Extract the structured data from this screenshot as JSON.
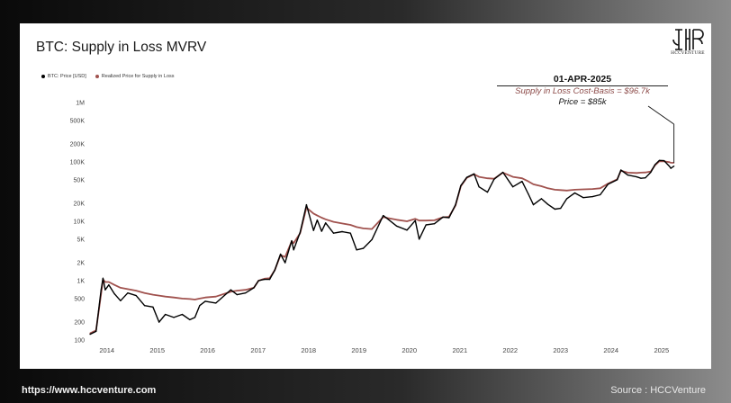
{
  "chart_data": {
    "type": "line",
    "title": "BTC: Supply in Loss MVRV",
    "xlabel": "",
    "ylabel": "",
    "y_scale": "log",
    "ylim": [
      100,
      1000000
    ],
    "xlim": [
      "2013-09-01",
      "2025-04-10"
    ],
    "y_ticks": [
      {
        "v": 100,
        "label": "100"
      },
      {
        "v": 200,
        "label": "200"
      },
      {
        "v": 500,
        "label": "500"
      },
      {
        "v": 1000,
        "label": "1K"
      },
      {
        "v": 2000,
        "label": "2K"
      },
      {
        "v": 5000,
        "label": "5K"
      },
      {
        "v": 10000,
        "label": "10K"
      },
      {
        "v": 20000,
        "label": "20K"
      },
      {
        "v": 50000,
        "label": "50K"
      },
      {
        "v": 100000,
        "label": "100K"
      },
      {
        "v": 200000,
        "label": "200K"
      },
      {
        "v": 500000,
        "label": "500K"
      },
      {
        "v": 1000000,
        "label": "1M"
      }
    ],
    "x_ticks": [
      {
        "v": "2014-01-01",
        "label": "2014"
      },
      {
        "v": "2015-01-01",
        "label": "2015"
      },
      {
        "v": "2016-01-01",
        "label": "2016"
      },
      {
        "v": "2017-01-01",
        "label": "2017"
      },
      {
        "v": "2018-01-01",
        "label": "2018"
      },
      {
        "v": "2019-01-01",
        "label": "2019"
      },
      {
        "v": "2020-01-01",
        "label": "2020"
      },
      {
        "v": "2021-01-01",
        "label": "2021"
      },
      {
        "v": "2022-01-01",
        "label": "2022"
      },
      {
        "v": "2023-01-01",
        "label": "2023"
      },
      {
        "v": "2024-01-01",
        "label": "2024"
      },
      {
        "v": "2025-01-01",
        "label": "2025"
      }
    ],
    "grid": false,
    "legend_position": "top-left",
    "series": [
      {
        "name": "BTC: Price [USD]",
        "color": "#000000",
        "x": [
          "2013-09-01",
          "2013-10-15",
          "2013-11-20",
          "2013-12-04",
          "2013-12-20",
          "2014-01-15",
          "2014-02-25",
          "2014-04-10",
          "2014-06-01",
          "2014-08-01",
          "2014-10-01",
          "2014-12-01",
          "2015-01-14",
          "2015-03-01",
          "2015-05-01",
          "2015-07-01",
          "2015-08-25",
          "2015-10-01",
          "2015-11-04",
          "2015-12-15",
          "2016-03-01",
          "2016-06-17",
          "2016-08-01",
          "2016-10-01",
          "2016-12-01",
          "2017-01-04",
          "2017-02-15",
          "2017-03-25",
          "2017-05-01",
          "2017-06-12",
          "2017-07-15",
          "2017-09-01",
          "2017-09-15",
          "2017-11-01",
          "2017-12-17",
          "2018-02-06",
          "2018-03-05",
          "2018-04-06",
          "2018-05-05",
          "2018-07-01",
          "2018-09-01",
          "2018-11-01",
          "2018-12-15",
          "2019-02-01",
          "2019-04-05",
          "2019-06-26",
          "2019-08-01",
          "2019-10-01",
          "2019-12-15",
          "2020-02-13",
          "2020-03-12",
          "2020-05-01",
          "2020-07-01",
          "2020-09-01",
          "2020-10-15",
          "2020-12-01",
          "2021-01-08",
          "2021-02-20",
          "2021-04-14",
          "2021-05-20",
          "2021-07-20",
          "2021-09-06",
          "2021-11-09",
          "2022-01-20",
          "2022-03-28",
          "2022-05-12",
          "2022-06-18",
          "2022-08-15",
          "2022-10-01",
          "2022-11-21",
          "2023-01-01",
          "2023-02-15",
          "2023-04-14",
          "2023-06-15",
          "2023-08-20",
          "2023-10-15",
          "2023-12-10",
          "2024-02-15",
          "2024-03-13",
          "2024-05-01",
          "2024-07-05",
          "2024-08-05",
          "2024-09-06",
          "2024-10-15",
          "2024-11-15",
          "2024-12-17",
          "2025-01-20",
          "2025-02-28",
          "2025-03-10",
          "2025-04-01"
        ],
        "y": [
          125,
          140,
          700,
          1100,
          700,
          850,
          600,
          460,
          620,
          560,
          380,
          360,
          200,
          270,
          240,
          270,
          220,
          240,
          380,
          450,
          420,
          700,
          580,
          620,
          760,
          1000,
          1050,
          1050,
          1500,
          2800,
          2000,
          4700,
          3300,
          6500,
          19000,
          7000,
          10500,
          6800,
          9400,
          6300,
          6700,
          6300,
          3300,
          3500,
          4900,
          12500,
          10800,
          8300,
          7100,
          10300,
          5000,
          8700,
          9100,
          11800,
          11500,
          19000,
          40000,
          55000,
          63000,
          38000,
          31000,
          51000,
          67000,
          38000,
          47000,
          29000,
          19000,
          24000,
          19300,
          16000,
          16500,
          24000,
          30000,
          25000,
          26000,
          28000,
          42000,
          50000,
          73000,
          60000,
          56000,
          53000,
          54000,
          67000,
          90000,
          106000,
          105000,
          84000,
          78000,
          85000
        ]
      },
      {
        "name": "Realized Price for Supply in Loss",
        "color": "#a0524e",
        "x": [
          "2013-09-01",
          "2013-10-15",
          "2013-11-20",
          "2013-12-04",
          "2013-12-20",
          "2014-01-15",
          "2014-02-25",
          "2014-04-10",
          "2014-06-01",
          "2014-08-01",
          "2014-10-01",
          "2014-12-01",
          "2015-01-14",
          "2015-03-01",
          "2015-05-01",
          "2015-07-01",
          "2015-08-25",
          "2015-10-01",
          "2015-11-04",
          "2015-12-15",
          "2016-03-01",
          "2016-06-17",
          "2016-08-01",
          "2016-10-01",
          "2016-12-01",
          "2017-01-04",
          "2017-02-15",
          "2017-03-25",
          "2017-05-01",
          "2017-06-12",
          "2017-07-15",
          "2017-09-01",
          "2017-09-15",
          "2017-11-01",
          "2017-12-17",
          "2018-02-06",
          "2018-03-05",
          "2018-04-06",
          "2018-05-05",
          "2018-07-01",
          "2018-09-01",
          "2018-11-01",
          "2018-12-15",
          "2019-02-01",
          "2019-04-05",
          "2019-06-26",
          "2019-08-01",
          "2019-10-01",
          "2019-12-15",
          "2020-02-13",
          "2020-03-12",
          "2020-05-01",
          "2020-07-01",
          "2020-09-01",
          "2020-10-15",
          "2020-12-01",
          "2021-01-08",
          "2021-02-20",
          "2021-04-14",
          "2021-05-20",
          "2021-07-20",
          "2021-09-06",
          "2021-11-09",
          "2022-01-20",
          "2022-03-28",
          "2022-05-12",
          "2022-06-18",
          "2022-08-15",
          "2022-10-01",
          "2022-11-21",
          "2023-01-01",
          "2023-02-15",
          "2023-04-14",
          "2023-06-15",
          "2023-08-20",
          "2023-10-15",
          "2023-12-10",
          "2024-02-15",
          "2024-03-13",
          "2024-05-01",
          "2024-07-05",
          "2024-08-05",
          "2024-09-06",
          "2024-10-15",
          "2024-11-15",
          "2024-12-17",
          "2025-01-20",
          "2025-02-28",
          "2025-03-10",
          "2025-04-01"
        ],
        "y": [
          130,
          145,
          600,
          1050,
          950,
          950,
          850,
          760,
          720,
          680,
          620,
          580,
          560,
          540,
          520,
          500,
          490,
          480,
          500,
          520,
          540,
          650,
          680,
          700,
          760,
          1000,
          1080,
          1100,
          1500,
          2700,
          2500,
          4600,
          4300,
          6300,
          17000,
          13500,
          12500,
          11500,
          10800,
          9800,
          9200,
          8700,
          8000,
          7600,
          7400,
          11800,
          11300,
          10600,
          10000,
          11000,
          10300,
          10300,
          10400,
          11700,
          11900,
          18500,
          39000,
          54000,
          62000,
          56000,
          53000,
          52000,
          66000,
          56000,
          53000,
          47000,
          42000,
          39000,
          36000,
          34000,
          33500,
          33000,
          34000,
          34500,
          35000,
          36000,
          43000,
          51000,
          71000,
          66000,
          65000,
          66000,
          66500,
          69000,
          88000,
          103000,
          102000,
          99000,
          97000,
          96700
        ]
      }
    ],
    "annotation": {
      "date": "01-APR-2025",
      "cost_basis": "Supply in Loss Cost-Basis = $96.7k",
      "price": "Price = $85k"
    }
  },
  "logo": {
    "text": "HCCVENTURE"
  },
  "footer": {
    "website": "https://www.hccventure.com",
    "source": "Source : HCCVenture"
  }
}
